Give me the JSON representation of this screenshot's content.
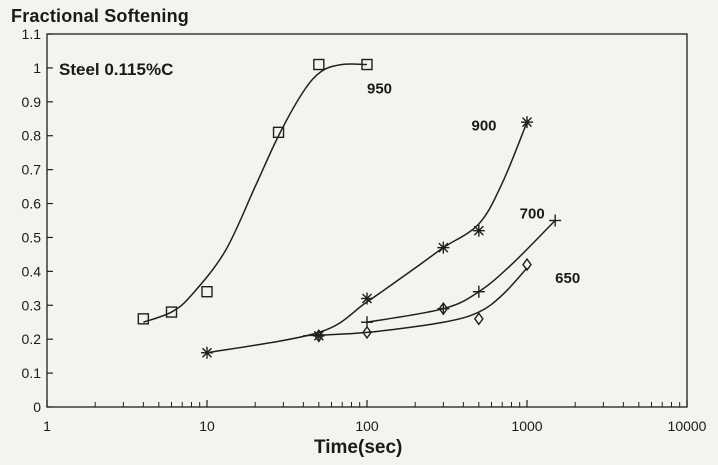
{
  "chart_data": {
    "type": "scatter",
    "title": "Fractional Softening",
    "xlabel": "Time(sec)",
    "ylabel": "",
    "xscale": "log",
    "xlim": [
      1,
      10000
    ],
    "ylim": [
      0,
      1.1
    ],
    "xticks": [
      "1",
      "10",
      "100",
      "1000",
      "10000"
    ],
    "yticks": [
      "0",
      "0.1",
      "0.2",
      "0.3",
      "0.4",
      "0.5",
      "0.6",
      "0.7",
      "0.8",
      "0.9",
      "1",
      "1.1"
    ],
    "annotation": "Steel 0.115%C",
    "grid": false,
    "series": [
      {
        "name": "950",
        "marker": "square",
        "points": [
          [
            4,
            0.26
          ],
          [
            6,
            0.28
          ],
          [
            10,
            0.34
          ],
          [
            28,
            0.81
          ],
          [
            50,
            1.01
          ],
          [
            100,
            1.01
          ]
        ],
        "curve": [
          [
            4,
            0.25
          ],
          [
            6,
            0.28
          ],
          [
            8,
            0.33
          ],
          [
            13,
            0.46
          ],
          [
            20,
            0.65
          ],
          [
            28,
            0.8
          ],
          [
            40,
            0.93
          ],
          [
            52,
            0.99
          ],
          [
            70,
            1.01
          ],
          [
            100,
            1.01
          ]
        ]
      },
      {
        "name": "900",
        "marker": "star",
        "points": [
          [
            10,
            0.16
          ],
          [
            50,
            0.21
          ],
          [
            100,
            0.32
          ],
          [
            300,
            0.47
          ],
          [
            500,
            0.52
          ],
          [
            1000,
            0.84
          ]
        ],
        "curve": [
          [
            10,
            0.16
          ],
          [
            50,
            0.22
          ],
          [
            100,
            0.31
          ],
          [
            200,
            0.41
          ],
          [
            300,
            0.47
          ],
          [
            500,
            0.54
          ],
          [
            700,
            0.66
          ],
          [
            1000,
            0.84
          ]
        ]
      },
      {
        "name": "700",
        "marker": "plus",
        "points": [
          [
            100,
            0.25
          ],
          [
            300,
            0.29
          ],
          [
            500,
            0.34
          ],
          [
            1500,
            0.55
          ]
        ],
        "curve": [
          [
            100,
            0.25
          ],
          [
            300,
            0.29
          ],
          [
            500,
            0.34
          ],
          [
            800,
            0.42
          ],
          [
            1500,
            0.55
          ]
        ]
      },
      {
        "name": "650",
        "marker": "diamond",
        "points": [
          [
            50,
            0.21
          ],
          [
            100,
            0.22
          ],
          [
            300,
            0.29
          ],
          [
            500,
            0.26
          ],
          [
            1000,
            0.42
          ]
        ],
        "curve": [
          [
            40,
            0.21
          ],
          [
            100,
            0.22
          ],
          [
            300,
            0.25
          ],
          [
            500,
            0.28
          ],
          [
            700,
            0.33
          ],
          [
            1000,
            0.41
          ]
        ]
      }
    ],
    "series_labels": [
      {
        "text": "950",
        "x": 100,
        "y": 0.94
      },
      {
        "text": "900",
        "x": 450,
        "y": 0.83
      },
      {
        "text": "700",
        "x": 900,
        "y": 0.57
      },
      {
        "text": "650",
        "x": 1500,
        "y": 0.38
      }
    ]
  }
}
